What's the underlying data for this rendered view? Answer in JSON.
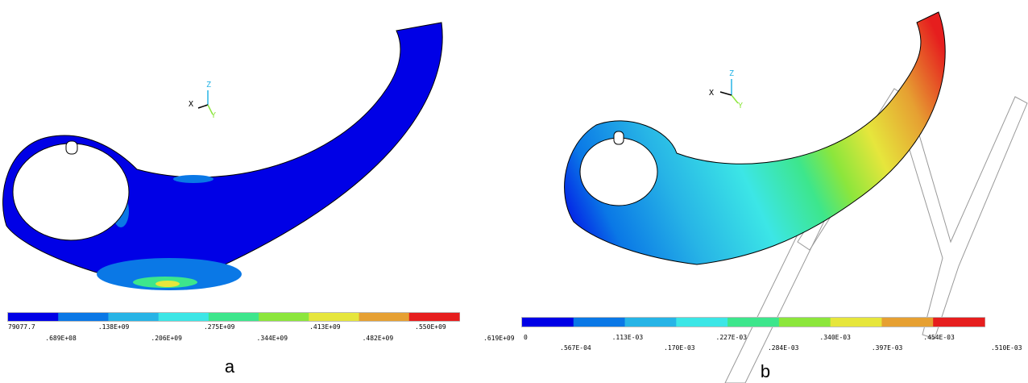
{
  "panels": [
    {
      "caption": "a",
      "triad": [
        "X",
        "Y",
        "Z"
      ],
      "colorbar": {
        "labels": [
          "79077.7",
          ".689E+08",
          ".138E+09",
          ".206E+09",
          ".275E+09",
          ".344E+09",
          ".413E+09",
          ".482E+09",
          ".550E+09",
          ".619E+09"
        ]
      }
    },
    {
      "caption": "b",
      "triad": [
        "X",
        "Y",
        "Z"
      ],
      "colorbar": {
        "labels": [
          "0",
          ".567E-04",
          ".113E-03",
          ".170E-03",
          ".227E-03",
          ".284E-03",
          ".340E-03",
          ".397E-03",
          ".454E-03",
          ".510E-03"
        ]
      }
    }
  ],
  "colorbar_colors": [
    "#0000e6",
    "#0a78e6",
    "#27b4e6",
    "#3ce6e6",
    "#3de68c",
    "#8ce63c",
    "#e6e63c",
    "#e6a032",
    "#e61e1e"
  ]
}
